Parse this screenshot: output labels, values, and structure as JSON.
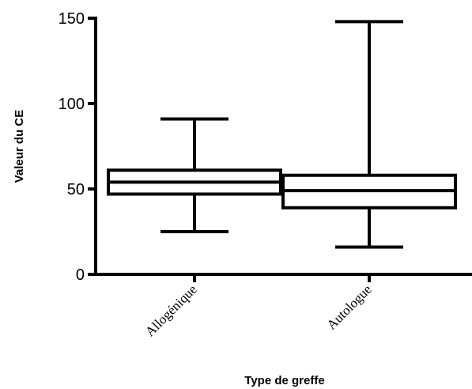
{
  "chart_data": {
    "type": "box",
    "title": "",
    "xlabel": "Type de greffe",
    "ylabel": "Valeur du CE",
    "ylim": [
      0,
      150
    ],
    "yticks": [
      0,
      50,
      100,
      150
    ],
    "categories": [
      "Allogénique",
      "Autologue"
    ],
    "boxes": [
      {
        "category": "Allogénique",
        "min": 25,
        "q1": 47,
        "median": 54,
        "q3": 61,
        "max": 91
      },
      {
        "category": "Autologue",
        "min": 16,
        "q1": 39,
        "median": 49,
        "q3": 58,
        "max": 148
      }
    ],
    "grid": false,
    "legend": "none"
  }
}
